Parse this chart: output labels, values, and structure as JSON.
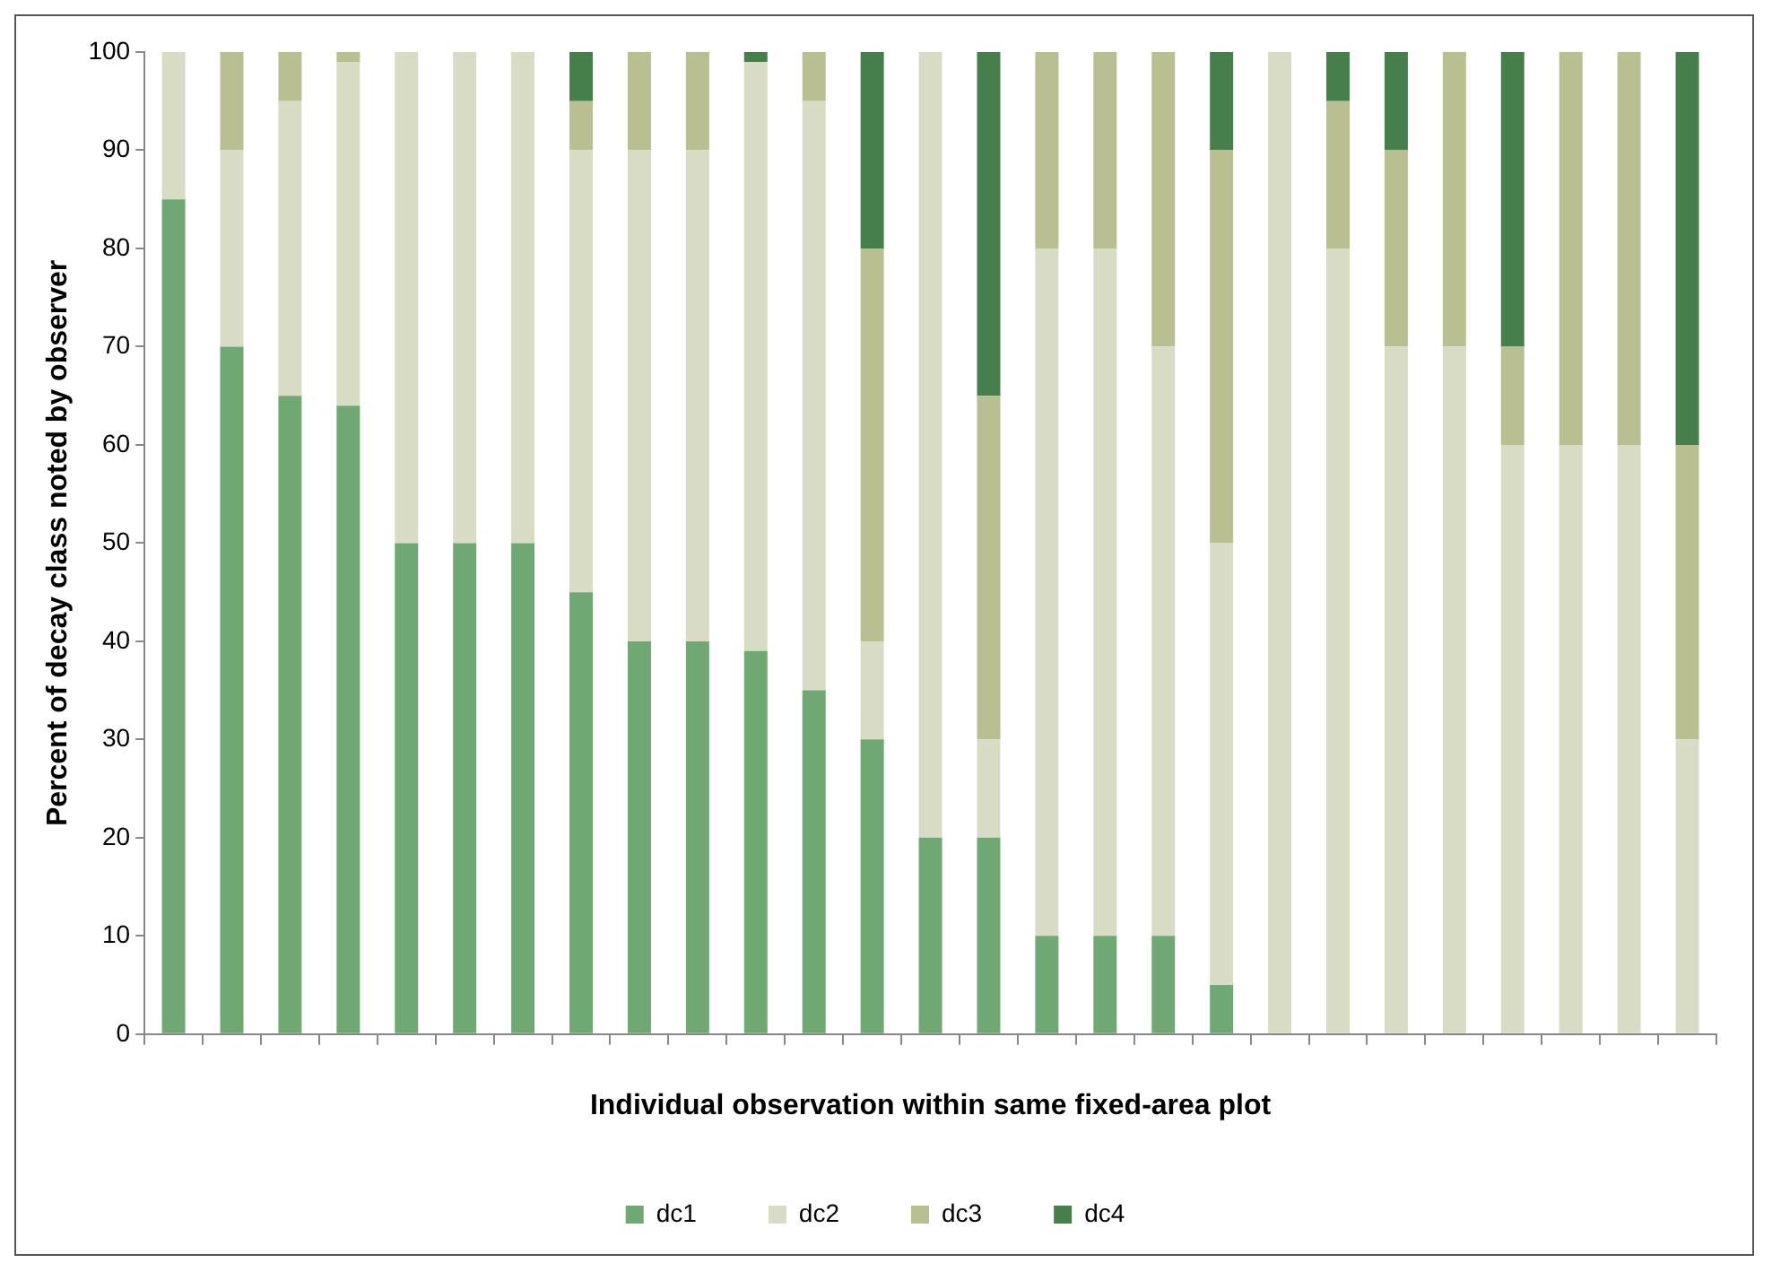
{
  "chart_data": {
    "type": "bar",
    "stacked": true,
    "xlabel": "Individual observation within same fixed-area plot",
    "ylabel": "Percent of decay class noted by observer",
    "categories": [
      null,
      null,
      null,
      null,
      null,
      null,
      null,
      null,
      null,
      null,
      null,
      null,
      null,
      null,
      null,
      null,
      null,
      null,
      null,
      null,
      null,
      null,
      null,
      null,
      null,
      null,
      null
    ],
    "series": [
      {
        "name": "dc1",
        "color": "#6fa872",
        "values": [
          85,
          70,
          65,
          64,
          50,
          50,
          50,
          45,
          40,
          40,
          39,
          35,
          30,
          20,
          20,
          10,
          10,
          10,
          5,
          0,
          0,
          0,
          0,
          0,
          0,
          0,
          0
        ]
      },
      {
        "name": "dc2",
        "color": "#d9dcc4",
        "values": [
          15,
          20,
          30,
          35,
          50,
          50,
          50,
          45,
          50,
          50,
          60,
          60,
          10,
          80,
          10,
          70,
          70,
          60,
          45,
          100,
          80,
          70,
          70,
          60,
          60,
          60,
          30
        ]
      },
      {
        "name": "dc3",
        "color": "#b9bf91",
        "values": [
          0,
          10,
          5,
          1,
          0,
          0,
          0,
          5,
          10,
          10,
          0,
          5,
          40,
          0,
          35,
          20,
          20,
          30,
          40,
          0,
          15,
          20,
          30,
          10,
          40,
          40,
          30
        ]
      },
      {
        "name": "dc4",
        "color": "#467f4c",
        "values": [
          0,
          0,
          0,
          0,
          0,
          0,
          0,
          5,
          0,
          0,
          1,
          0,
          20,
          0,
          35,
          0,
          0,
          0,
          10,
          0,
          5,
          10,
          0,
          30,
          0,
          0,
          40
        ]
      }
    ],
    "ylim": [
      0,
      100
    ],
    "yticks": [
      0,
      10,
      20,
      30,
      40,
      50,
      60,
      70,
      80,
      90,
      100
    ],
    "grid": false,
    "legend": "bottom"
  }
}
